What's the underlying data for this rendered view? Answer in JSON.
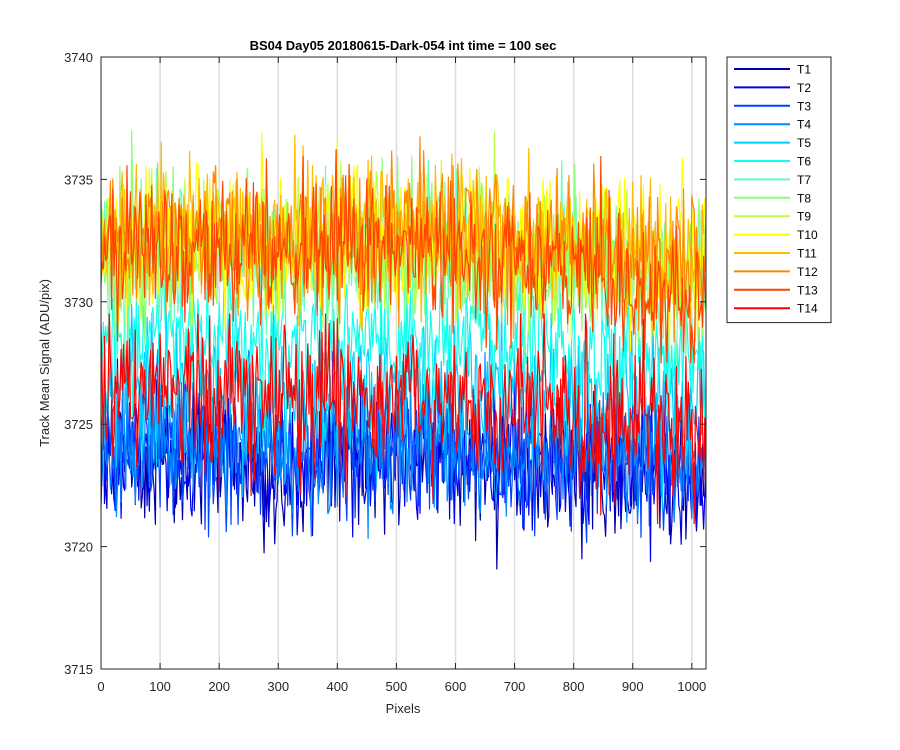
{
  "chart_data": {
    "type": "line",
    "title": "BS04 Day05 20180615-Dark-054 int time = 100 sec",
    "xlabel": "Pixels",
    "ylabel": "Track Mean Signal (ADU/pix)",
    "xlim": [
      0,
      1024
    ],
    "ylim": [
      3715,
      3740
    ],
    "xticks": [
      0,
      100,
      200,
      300,
      400,
      500,
      600,
      700,
      800,
      900,
      1000
    ],
    "yticks": [
      3715,
      3720,
      3725,
      3730,
      3735,
      3740
    ],
    "grid": "vertical",
    "legend_position": "outside-top-right",
    "series": [
      {
        "name": "T1",
        "color": "#0000aa",
        "x": [
          0,
          100,
          200,
          300,
          400,
          500,
          600,
          700,
          800,
          900,
          1000,
          1024
        ],
        "values": [
          3723.5,
          3723.8,
          3723.6,
          3723.2,
          3723.5,
          3723.6,
          3723.5,
          3723.3,
          3723.2,
          3723.0,
          3722.8,
          3722.9
        ],
        "min": 3717.8,
        "max": 3727.6
      },
      {
        "name": "T2",
        "color": "#0000ee",
        "x": [
          0,
          100,
          200,
          300,
          400,
          500,
          600,
          700,
          800,
          900,
          1000,
          1024
        ],
        "values": [
          3723.7,
          3724.0,
          3723.8,
          3723.4,
          3723.7,
          3723.8,
          3723.7,
          3723.5,
          3723.4,
          3723.2,
          3723.0,
          3723.1
        ],
        "min": 3719.0,
        "max": 3728.0
      },
      {
        "name": "T3",
        "color": "#0044ff",
        "x": [
          0,
          100,
          200,
          300,
          400,
          500,
          600,
          700,
          800,
          900,
          1000,
          1024
        ],
        "values": [
          3723.9,
          3724.2,
          3724.0,
          3723.6,
          3723.9,
          3724.0,
          3723.9,
          3723.7,
          3723.6,
          3723.4,
          3723.2,
          3723.3
        ],
        "min": 3719.5,
        "max": 3728.2
      },
      {
        "name": "T4",
        "color": "#0088ff",
        "x": [
          0,
          100,
          200,
          300,
          400,
          500,
          600,
          700,
          800,
          900,
          1000,
          1024
        ],
        "values": [
          3724.1,
          3724.4,
          3724.2,
          3723.8,
          3724.1,
          3724.2,
          3724.1,
          3723.9,
          3723.8,
          3723.6,
          3723.4,
          3723.5
        ],
        "min": 3719.8,
        "max": 3728.5
      },
      {
        "name": "T5",
        "color": "#00ccff",
        "x": [
          0,
          100,
          200,
          300,
          400,
          500,
          600,
          700,
          800,
          900,
          1000,
          1024
        ],
        "values": [
          3726.2,
          3726.6,
          3726.5,
          3726.1,
          3726.4,
          3726.5,
          3726.4,
          3726.2,
          3726.0,
          3725.8,
          3725.5,
          3725.6
        ],
        "min": 3721.5,
        "max": 3730.5
      },
      {
        "name": "T6",
        "color": "#11ffee",
        "x": [
          0,
          100,
          200,
          300,
          400,
          500,
          600,
          700,
          800,
          900,
          1000,
          1024
        ],
        "values": [
          3728.2,
          3728.6,
          3728.5,
          3728.1,
          3728.4,
          3728.5,
          3728.4,
          3728.2,
          3728.0,
          3727.8,
          3727.5,
          3727.6
        ],
        "min": 3724.0,
        "max": 3732.5
      },
      {
        "name": "T7",
        "color": "#66ffbb",
        "x": [
          0,
          100,
          200,
          300,
          400,
          500,
          600,
          700,
          800,
          900,
          1000,
          1024
        ],
        "values": [
          3731.5,
          3732.0,
          3731.9,
          3731.5,
          3731.8,
          3731.9,
          3731.8,
          3731.6,
          3731.4,
          3731.1,
          3730.8,
          3730.9
        ],
        "min": 3727.0,
        "max": 3736.5
      },
      {
        "name": "T8",
        "color": "#88ff77",
        "x": [
          0,
          100,
          200,
          300,
          400,
          500,
          600,
          700,
          800,
          900,
          1000,
          1024
        ],
        "values": [
          3731.8,
          3732.3,
          3732.2,
          3731.8,
          3732.1,
          3732.2,
          3732.1,
          3731.9,
          3731.7,
          3731.4,
          3731.1,
          3731.2
        ],
        "min": 3727.5,
        "max": 3737.0
      },
      {
        "name": "T9",
        "color": "#bbff44",
        "x": [
          0,
          100,
          200,
          300,
          400,
          500,
          600,
          700,
          800,
          900,
          1000,
          1024
        ],
        "values": [
          3732.0,
          3732.5,
          3732.4,
          3732.0,
          3732.3,
          3732.4,
          3732.3,
          3732.1,
          3731.9,
          3731.6,
          3731.3,
          3731.4
        ],
        "min": 3727.8,
        "max": 3737.5
      },
      {
        "name": "T10",
        "color": "#ffff00",
        "x": [
          0,
          100,
          200,
          300,
          400,
          500,
          600,
          700,
          800,
          900,
          1000,
          1024
        ],
        "values": [
          3732.3,
          3732.8,
          3732.7,
          3732.3,
          3732.6,
          3732.7,
          3732.6,
          3732.4,
          3732.2,
          3731.9,
          3731.6,
          3731.7
        ],
        "min": 3728.0,
        "max": 3738.5
      },
      {
        "name": "T11",
        "color": "#ffbb00",
        "x": [
          0,
          100,
          200,
          300,
          400,
          500,
          600,
          700,
          800,
          900,
          1000,
          1024
        ],
        "values": [
          3732.5,
          3733.0,
          3732.9,
          3732.5,
          3732.8,
          3732.9,
          3732.8,
          3732.6,
          3732.4,
          3732.1,
          3731.8,
          3731.9
        ],
        "min": 3728.3,
        "max": 3738.0
      },
      {
        "name": "T12",
        "color": "#ff8800",
        "x": [
          0,
          100,
          200,
          300,
          400,
          500,
          600,
          700,
          800,
          900,
          1000,
          1024
        ],
        "values": [
          3732.4,
          3732.9,
          3732.8,
          3732.4,
          3732.7,
          3732.8,
          3732.7,
          3732.5,
          3732.3,
          3732.0,
          3731.7,
          3731.8
        ],
        "min": 3728.2,
        "max": 3737.8
      },
      {
        "name": "T13",
        "color": "#ff4400",
        "x": [
          0,
          100,
          200,
          300,
          400,
          500,
          600,
          700,
          800,
          900,
          1000,
          1024
        ],
        "values": [
          3731.8,
          3732.3,
          3732.2,
          3731.8,
          3732.1,
          3732.2,
          3732.0,
          3731.6,
          3731.2,
          3730.8,
          3730.3,
          3730.4
        ],
        "min": 3727.5,
        "max": 3736.5
      },
      {
        "name": "T14",
        "color": "#ff0000",
        "x": [
          0,
          100,
          200,
          300,
          400,
          500,
          600,
          700,
          800,
          900,
          1000,
          1024
        ],
        "values": [
          3726.3,
          3726.6,
          3726.4,
          3726.2,
          3726.2,
          3726.1,
          3726.0,
          3725.8,
          3725.6,
          3725.2,
          3724.8,
          3724.9
        ],
        "min": 3719.3,
        "max": 3729.5
      }
    ]
  }
}
